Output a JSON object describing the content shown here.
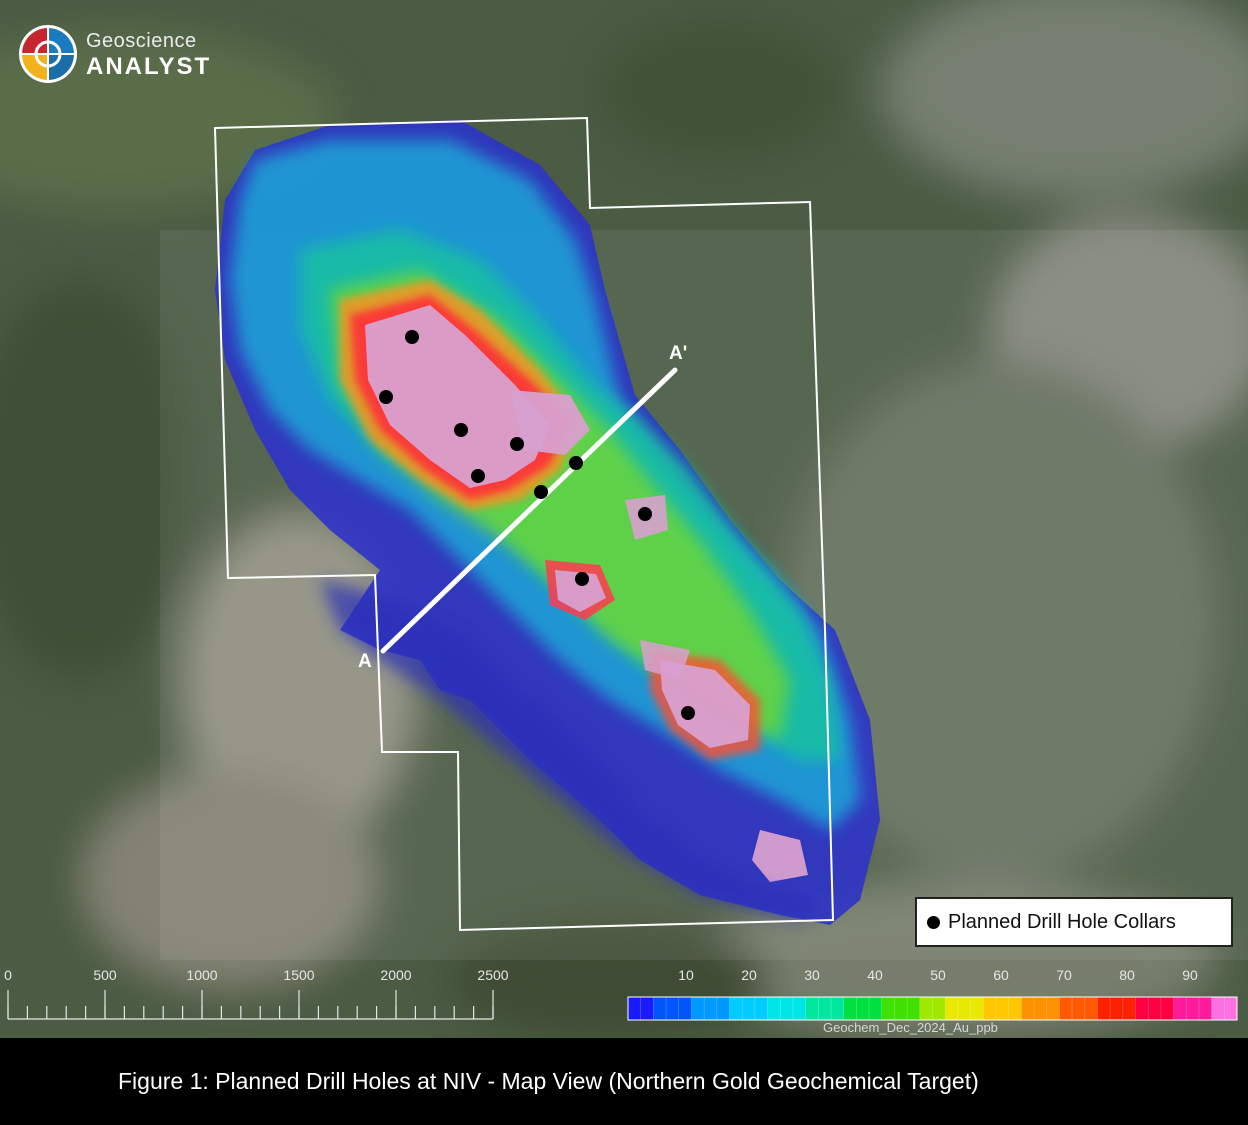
{
  "logo": {
    "line1": "Geoscience",
    "line2": "ANALYST"
  },
  "section": {
    "start_label": "A",
    "end_label": "A'"
  },
  "legend": {
    "label": "Planned Drill Hole Collars"
  },
  "scale_bar": {
    "labels": [
      "0",
      "500",
      "1000",
      "1500",
      "2000",
      "2500"
    ]
  },
  "colorbar": {
    "title": "Geochem_Dec_2024_Au_ppb",
    "tick_labels": [
      "10",
      "20",
      "30",
      "40",
      "50",
      "60",
      "70",
      "80",
      "90"
    ],
    "colors": [
      "#1a1aff",
      "#0055ff",
      "#0099ff",
      "#00ccff",
      "#00e5e5",
      "#00e8a0",
      "#00e040",
      "#40e000",
      "#a0e800",
      "#e8e800",
      "#ffc800",
      "#ff9000",
      "#ff5a00",
      "#ff2000",
      "#ff0040",
      "#ff1a9c",
      "#ff70e0"
    ]
  },
  "caption": "Figure 1: Planned Drill Holes at NIV - Map View (Northern Gold Geochemical Target)"
}
